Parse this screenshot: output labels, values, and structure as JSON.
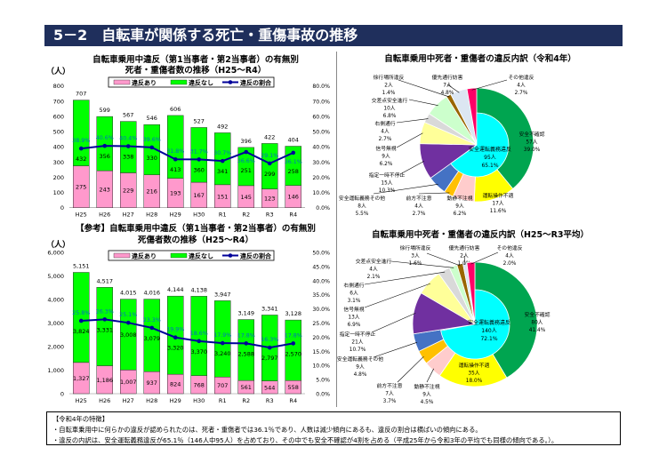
{
  "header": {
    "title": "5－2　自転車が関係する死亡・重傷事故の推移"
  },
  "legend": {
    "violation": "違反あり",
    "no_violation": "違反なし",
    "ratio": "違反の割合"
  },
  "colors": {
    "violation": "#ff99cc",
    "no_violation": "#00ff00",
    "ratio": "#000099",
    "header": "#1f2f5c",
    "ratio_label": "#0070c0"
  },
  "chart_data": [
    {
      "type": "bar",
      "title_line1": "自転車乗用中違反（第1当事者・第2当事者）の有無別",
      "title_line2": "死者・重傷者数の推移（H25～R4）",
      "ylabel": "（人）",
      "ylim": [
        0,
        800
      ],
      "y2lim": [
        0,
        80
      ],
      "yticks": [
        "0",
        "100",
        "200",
        "300",
        "400",
        "500",
        "600",
        "700",
        "800"
      ],
      "y2ticks": [
        "0.0%",
        "10.0%",
        "20.0%",
        "30.0%",
        "40.0%",
        "50.0%",
        "60.0%",
        "70.0%",
        "80.0%"
      ],
      "categories": [
        "H25",
        "H26",
        "H27",
        "H28",
        "H29",
        "H30",
        "R1",
        "R2",
        "R3",
        "R4"
      ],
      "series": [
        {
          "name": "違反あり",
          "values": [
            275,
            243,
            229,
            216,
            193,
            167,
            151,
            145,
            123,
            146
          ]
        },
        {
          "name": "違反なし",
          "values": [
            432,
            356,
            338,
            330,
            413,
            360,
            341,
            251,
            299,
            258
          ]
        },
        {
          "name": "違反の割合",
          "values": [
            "38.9%",
            "40.6%",
            "40.4%",
            "39.6%",
            "31.8%",
            "31.7%",
            "30.7%",
            "36.6%",
            "29.1%",
            "36.1%"
          ]
        }
      ],
      "totals": [
        "707",
        "599",
        "567",
        "546",
        "606",
        "527",
        "492",
        "396",
        "422",
        "404"
      ],
      "stacked": true,
      "grid": false,
      "legend_position": "top"
    },
    {
      "type": "bar",
      "title_line1": "【参考】自転車乗用中違反（第1当事者・第2当事者）の有無別",
      "title_line2": "死傷者数の推移（H25～R4）",
      "ylabel": "（人）",
      "ylim": [
        0,
        6000
      ],
      "y2lim": [
        0,
        50
      ],
      "yticks": [
        "0",
        "1,000",
        "2,000",
        "3,000",
        "4,000",
        "5,000",
        "6,000"
      ],
      "y2ticks": [
        "0.0%",
        "5.0%",
        "10.0%",
        "15.0%",
        "20.0%",
        "25.0%",
        "30.0%",
        "35.0%",
        "40.0%",
        "45.0%",
        "50.0%"
      ],
      "categories": [
        "H25",
        "H26",
        "H27",
        "H28",
        "H29",
        "H30",
        "R1",
        "R2",
        "R3",
        "R4"
      ],
      "series": [
        {
          "name": "違反あり",
          "values": [
            1327,
            1186,
            1007,
            937,
            824,
            768,
            707,
            561,
            544,
            558
          ],
          "labels": [
            "1,327",
            "1,186",
            "1,007",
            "937",
            "824",
            "768",
            "707",
            "561",
            "544",
            "558"
          ]
        },
        {
          "name": "違反なし",
          "values": [
            3824,
            3331,
            3008,
            3079,
            3320,
            3370,
            3240,
            2588,
            2797,
            2570
          ],
          "labels": [
            "3,824",
            "3,331",
            "3,008",
            "3,079",
            "3,320",
            "3,370",
            "3,240",
            "2,588",
            "2,797",
            "2,570"
          ]
        },
        {
          "name": "違反の割合",
          "values": [
            "25.8%",
            "26.3%",
            "25.1%",
            "23.3%",
            "19.9%",
            "18.6%",
            "17.9%",
            "17.8%",
            "16.3%",
            "17.8%"
          ]
        }
      ],
      "totals": [
        "5,151",
        "4,517",
        "4,015",
        "4,016",
        "4,144",
        "4,138",
        "3,947",
        "3,149",
        "3,341",
        "3,128"
      ],
      "stacked": true,
      "grid": false,
      "legend_position": "top"
    },
    {
      "type": "pie",
      "title": "自転車乗用中死者・重傷者の違反内訳（令和4年）",
      "inner": {
        "label": "安全運転義務違反",
        "count": "95人",
        "pct": "65.1%",
        "value": 65.1,
        "color": "#00ffff"
      },
      "slices": [
        {
          "label": "安全不確認",
          "count": "57人",
          "pct": "39.0%",
          "value": 57,
          "color": "#00a550"
        },
        {
          "label": "運転操作不適",
          "count": "17人",
          "pct": "11.6%",
          "value": 17,
          "color": "#ffff00"
        },
        {
          "label": "動静不注視",
          "count": "9人",
          "pct": "6.2%",
          "value": 9,
          "color": "#ffcccc"
        },
        {
          "label": "前方不注意",
          "count": "4人",
          "pct": "2.7%",
          "value": 4,
          "color": "#ffc000"
        },
        {
          "label": "安全運転義務その他",
          "count": "8人",
          "pct": "5.5%",
          "value": 8,
          "color": "#4472c4"
        },
        {
          "label": "指定一時不停止",
          "count": "15人",
          "pct": "10.3%",
          "value": 15,
          "color": "#7030a0"
        },
        {
          "label": "信号無視",
          "count": "9人",
          "pct": "6.2%",
          "value": 9,
          "color": "#ffff99"
        },
        {
          "label": "右側通行",
          "count": "4人",
          "pct": "2.7%",
          "value": 4,
          "color": "#d9d9d9"
        },
        {
          "label": "交差点安全進行",
          "count": "10人",
          "pct": "6.8%",
          "value": 10,
          "color": "#ccffcc"
        },
        {
          "label": "徐行場所違反",
          "count": "2人",
          "pct": "1.4%",
          "value": 2,
          "color": "#996600"
        },
        {
          "label": "優先通行妨害",
          "count": "7人",
          "pct": "4.8%",
          "value": 7,
          "color": "#dce6f2"
        },
        {
          "label": "その他違反",
          "count": "4人",
          "pct": "2.7%",
          "value": 4,
          "color": "#ff0066"
        }
      ]
    },
    {
      "type": "pie",
      "title": "自転車乗用中死者・重傷者の違反内訳（H25～R3平均）",
      "inner": {
        "label": "安全運転義務違反",
        "count": "140人",
        "pct": "72.1%",
        "value": 72.1,
        "color": "#00ffff"
      },
      "slices": [
        {
          "label": "安全不確認",
          "count": "80人",
          "pct": "41.4%",
          "value": 80,
          "color": "#00a550"
        },
        {
          "label": "運転操作不適",
          "count": "35人",
          "pct": "18.0%",
          "value": 35,
          "color": "#ffff00"
        },
        {
          "label": "動静不注視",
          "count": "9人",
          "pct": "4.5%",
          "value": 9,
          "color": "#ffcccc"
        },
        {
          "label": "前方不注意",
          "count": "7人",
          "pct": "3.7%",
          "value": 7,
          "color": "#ffc000"
        },
        {
          "label": "安全運転義務その他",
          "count": "9人",
          "pct": "4.8%",
          "value": 9,
          "color": "#4472c4"
        },
        {
          "label": "指定一時不停止",
          "count": "21人",
          "pct": "10.7%",
          "value": 21,
          "color": "#7030a0"
        },
        {
          "label": "信号無視",
          "count": "13人",
          "pct": "6.9%",
          "value": 13,
          "color": "#ffff99"
        },
        {
          "label": "右側通行",
          "count": "6人",
          "pct": "3.1%",
          "value": 6,
          "color": "#d9d9d9"
        },
        {
          "label": "交差点安全進行",
          "count": "4人",
          "pct": "2.1%",
          "value": 4,
          "color": "#ccffcc"
        },
        {
          "label": "徐行場所違反",
          "count": "3人",
          "pct": "1.6%",
          "value": 3,
          "color": "#996600"
        },
        {
          "label": "優先通行妨害",
          "count": "2人",
          "pct": "1.0%",
          "value": 2,
          "color": "#dce6f2"
        },
        {
          "label": "その他違反",
          "count": "4人",
          "pct": "2.0%",
          "value": 4,
          "color": "#ff0066"
        }
      ]
    }
  ],
  "notes": {
    "heading": "【令和4年の特徴】",
    "line1": "・自転車乗用中に何らかの違反が認められたのは、死者・重傷者では36.1％であり、人数は減少傾向にあるも、違反の割合は横ばいの傾向にある。",
    "line2": "・違反の内訳は、安全運転義務違反が65.1％（146人中95人）を占めており、その中でも安全不確認が4割を占める（平成25年から令和3年の平均でも同様の傾向である。）。"
  }
}
